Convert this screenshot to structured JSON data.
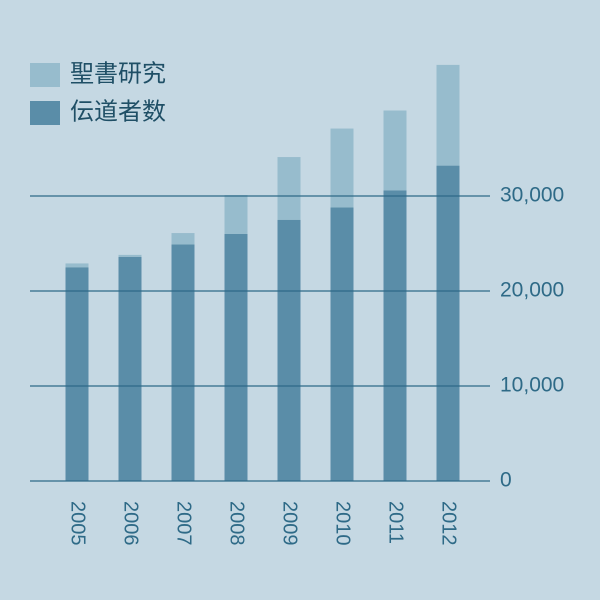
{
  "chart_data": {
    "type": "stacked-bar",
    "categories": [
      "2005",
      "2006",
      "2007",
      "2008",
      "2009",
      "2010",
      "2011",
      "2012"
    ],
    "series": [
      {
        "name": "伝道者数",
        "color": "#5a8da8",
        "values": [
          22500,
          23600,
          24900,
          26000,
          27500,
          28800,
          30600,
          33200
        ]
      },
      {
        "name": "聖書研究",
        "color": "#97bccd",
        "values": [
          400,
          200,
          1200,
          4100,
          6600,
          8300,
          8400,
          10600
        ]
      }
    ],
    "ylim": [
      0,
      50000
    ],
    "yticks": [
      0,
      {
        "value": 10000,
        "label": "10,000"
      },
      {
        "value": 20000,
        "label": "20,000"
      },
      {
        "value": 30000,
        "label": "30,000"
      }
    ],
    "grid": true,
    "legend": "top-left"
  }
}
